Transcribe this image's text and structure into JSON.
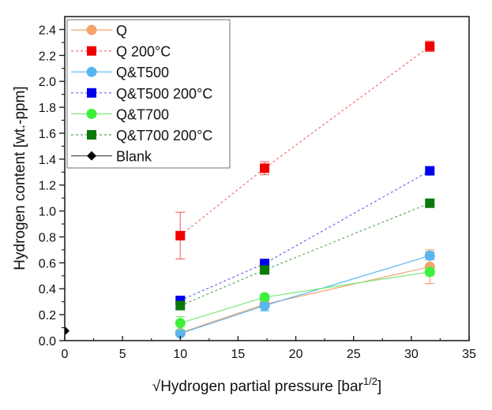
{
  "chart_data": {
    "type": "scatter",
    "title": "",
    "xlabel": "√Hydrogen partial pressure [bar",
    "xlabel_superscript": "1/2",
    "xlabel_suffix": "]",
    "ylabel": "Hydrogen content [wt.-ppm]",
    "xlim": [
      0,
      35
    ],
    "ylim": [
      0,
      2.5
    ],
    "xticks": [
      0,
      5,
      10,
      15,
      20,
      25,
      30,
      35
    ],
    "yticks": [
      0.0,
      0.2,
      0.4,
      0.6,
      0.8,
      1.0,
      1.2,
      1.4,
      1.6,
      1.8,
      2.0,
      2.2,
      2.4
    ],
    "xtick_labels": [
      "0",
      "5",
      "10",
      "15",
      "20",
      "25",
      "30",
      "35"
    ],
    "ytick_labels": [
      "0.0",
      "0.2",
      "0.4",
      "0.6",
      "0.8",
      "1.0",
      "1.2",
      "1.4",
      "1.6",
      "1.8",
      "2.0",
      "2.2",
      "2.4"
    ],
    "grid": false,
    "legend_position": "top-left",
    "series": [
      {
        "name": "Q",
        "color": "#f4a46a",
        "marker": "circle",
        "line": "solid",
        "x": [
          10,
          17.3,
          31.6
        ],
        "y": [
          0.06,
          0.28,
          0.57
        ],
        "err": [
          0.01,
          0.03,
          0.13
        ]
      },
      {
        "name": "Q 200°C",
        "color": "#f20000",
        "line_color": "#f07070",
        "marker": "square",
        "line": "dotted",
        "x": [
          10,
          17.3,
          31.6
        ],
        "y": [
          0.81,
          1.33,
          2.27
        ],
        "err": [
          0.18,
          0.05,
          0.04
        ]
      },
      {
        "name": "Q&T500",
        "color": "#5ab4f0",
        "marker": "circle",
        "line": "solid",
        "x": [
          10,
          17.3,
          31.6
        ],
        "y": [
          0.055,
          0.27,
          0.655
        ],
        "err": [
          0.01,
          0.04,
          0.03
        ]
      },
      {
        "name": "Q&T500 200°C",
        "color": "#0000ee",
        "line_color": "#6a6ae8",
        "marker": "square",
        "line": "dotted",
        "x": [
          10,
          17.3,
          31.6
        ],
        "y": [
          0.31,
          0.595,
          1.31
        ],
        "err": [
          0.02,
          0.02,
          0.02
        ]
      },
      {
        "name": "Q&T700",
        "color": "#3ef03e",
        "line_color": "#7ae87a",
        "marker": "circle",
        "line": "solid",
        "x": [
          10,
          17.3,
          31.6
        ],
        "y": [
          0.135,
          0.335,
          0.53
        ],
        "err": [
          0.05,
          0.02,
          0.03
        ]
      },
      {
        "name": "Q&T700 200°C",
        "color": "#0a7a0a",
        "line_color": "#5aaa5a",
        "marker": "square",
        "line": "dotted",
        "x": [
          10,
          17.3,
          31.6
        ],
        "y": [
          0.27,
          0.545,
          1.06
        ],
        "err": [
          0.02,
          0.03,
          0.03
        ]
      },
      {
        "name": "Blank",
        "color": "#000000",
        "line_color": "#555555",
        "marker": "diamond",
        "line": "solid",
        "x": [
          0
        ],
        "y": [
          0.075
        ],
        "err": [
          0
        ]
      }
    ]
  }
}
